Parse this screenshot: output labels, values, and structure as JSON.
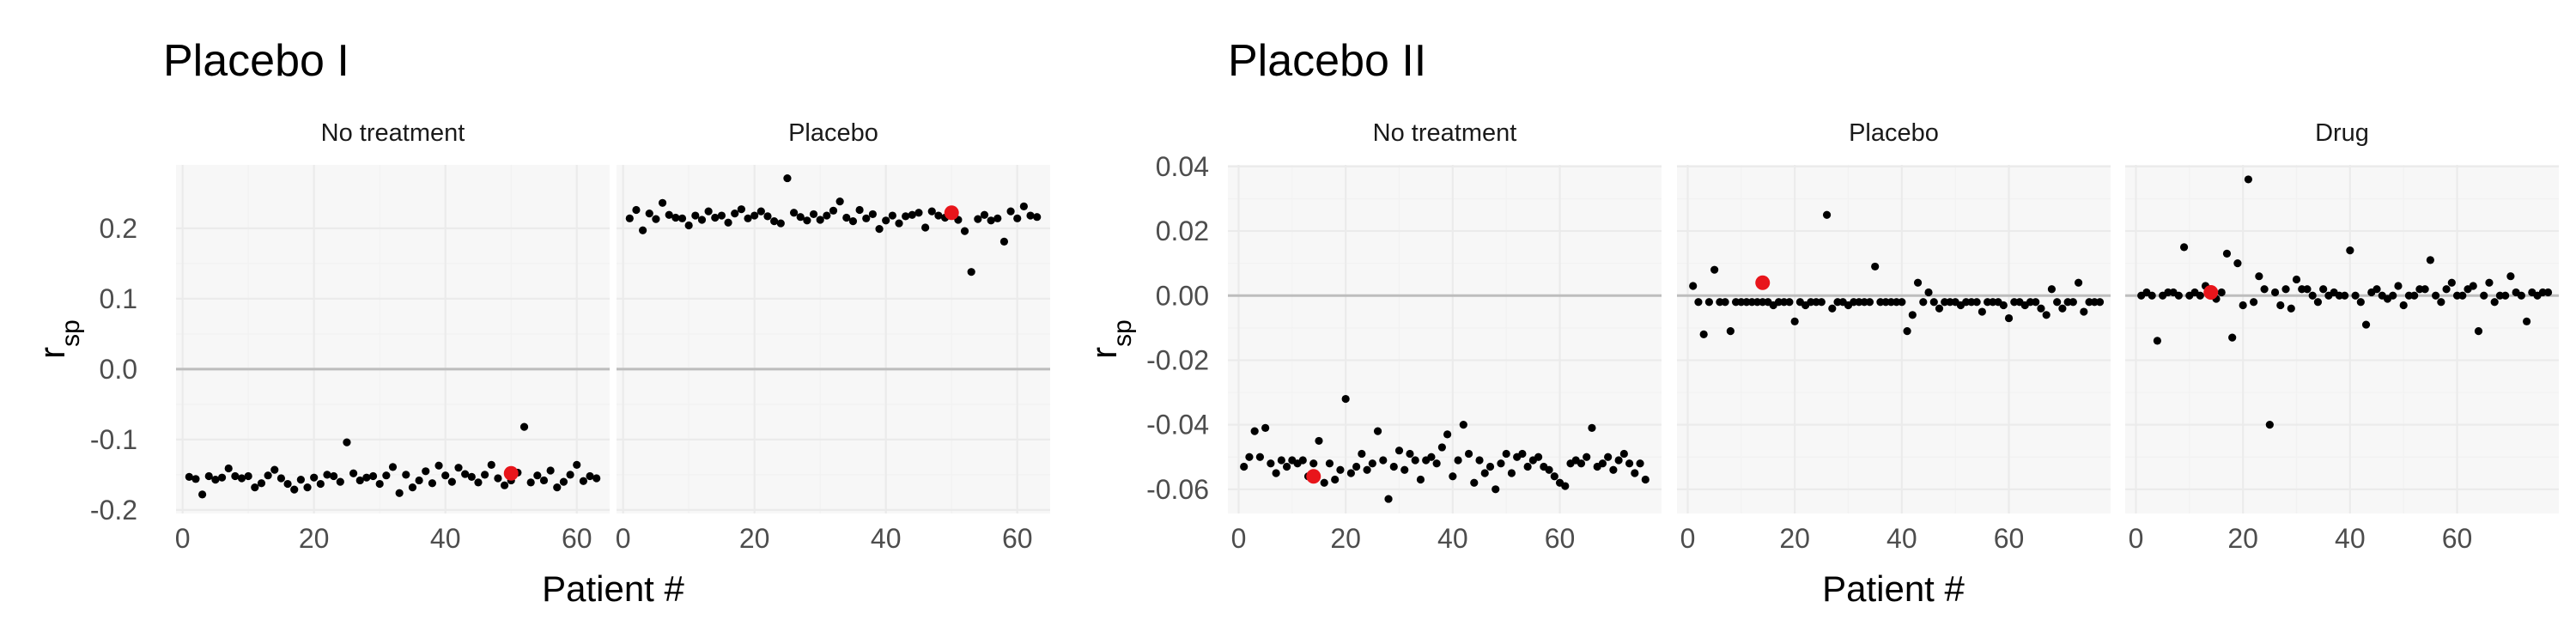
{
  "chart_data": [
    {
      "type": "scatter",
      "title": "Placebo I",
      "xlabel": "Patient #",
      "ylabel_base": "r",
      "ylabel_sub": "sp",
      "xlim": [
        -1,
        65
      ],
      "ylim": [
        -0.205,
        0.29
      ],
      "xticks": [
        0,
        20,
        40,
        60
      ],
      "yticks": [
        -0.2,
        -0.1,
        0.0,
        0.1,
        0.2
      ],
      "ytick_labels": [
        "-0.2",
        "-0.1",
        "0.0",
        "0.1",
        "0.2"
      ],
      "reference_line": 0,
      "panels": [
        {
          "strip": "No treatment",
          "x_start": 1,
          "y": [
            -0.153,
            -0.156,
            -0.178,
            -0.152,
            -0.157,
            -0.154,
            -0.141,
            -0.152,
            -0.155,
            -0.152,
            -0.168,
            -0.162,
            -0.151,
            -0.143,
            -0.155,
            -0.163,
            -0.171,
            -0.157,
            -0.168,
            -0.154,
            -0.163,
            -0.15,
            -0.152,
            -0.16,
            -0.104,
            -0.148,
            -0.158,
            -0.154,
            -0.152,
            -0.163,
            -0.151,
            -0.139,
            -0.176,
            -0.15,
            -0.168,
            -0.158,
            -0.145,
            -0.162,
            -0.137,
            -0.151,
            -0.16,
            -0.14,
            -0.149,
            -0.153,
            -0.161,
            -0.15,
            -0.136,
            -0.155,
            -0.165,
            -0.158,
            -0.147,
            -0.082,
            -0.161,
            -0.151,
            -0.158,
            -0.144,
            -0.168,
            -0.16,
            -0.15,
            -0.136,
            -0.159,
            -0.152,
            -0.155
          ],
          "highlight": {
            "x": 50,
            "y": -0.148
          }
        },
        {
          "strip": "Placebo",
          "x_start": 1,
          "y": [
            0.214,
            0.226,
            0.197,
            0.221,
            0.213,
            0.236,
            0.219,
            0.215,
            0.214,
            0.204,
            0.218,
            0.212,
            0.224,
            0.215,
            0.218,
            0.208,
            0.221,
            0.227,
            0.214,
            0.218,
            0.224,
            0.217,
            0.21,
            0.207,
            0.271,
            0.222,
            0.216,
            0.211,
            0.22,
            0.212,
            0.218,
            0.225,
            0.238,
            0.215,
            0.21,
            0.226,
            0.214,
            0.22,
            0.199,
            0.211,
            0.218,
            0.207,
            0.217,
            0.219,
            0.222,
            0.201,
            0.224,
            0.218,
            0.215,
            0.221,
            0.212,
            0.196,
            0.138,
            0.213,
            0.219,
            0.211,
            0.214,
            0.181,
            0.224,
            0.214,
            0.231,
            0.218,
            0.216
          ],
          "highlight": {
            "x": 50,
            "y": 0.222
          }
        }
      ]
    },
    {
      "type": "scatter",
      "title": "Placebo II",
      "xlabel": "Patient #",
      "ylabel_base": "r",
      "ylabel_sub": "sp",
      "xlim": [
        -2,
        79
      ],
      "ylim": [
        -0.0675,
        0.0405
      ],
      "xticks": [
        0,
        20,
        40,
        60
      ],
      "yticks": [
        -0.06,
        -0.04,
        -0.02,
        0.0,
        0.02,
        0.04
      ],
      "ytick_labels": [
        "-0.06",
        "-0.04",
        "-0.02",
        "0.00",
        "0.02",
        "0.04"
      ],
      "reference_line": 0,
      "panels": [
        {
          "strip": "No treatment",
          "x_start": 1,
          "y": [
            -0.053,
            -0.05,
            -0.042,
            -0.05,
            -0.041,
            -0.052,
            -0.055,
            -0.051,
            -0.053,
            -0.051,
            -0.052,
            -0.051,
            -0.056,
            -0.052,
            -0.045,
            -0.058,
            -0.052,
            -0.057,
            -0.054,
            -0.032,
            -0.055,
            -0.053,
            -0.049,
            -0.054,
            -0.052,
            -0.042,
            -0.051,
            -0.063,
            -0.053,
            -0.048,
            -0.054,
            -0.049,
            -0.051,
            -0.057,
            -0.051,
            -0.05,
            -0.052,
            -0.047,
            -0.043,
            -0.056,
            -0.051,
            -0.04,
            -0.049,
            -0.058,
            -0.051,
            -0.055,
            -0.053,
            -0.06,
            -0.052,
            -0.049,
            -0.055,
            -0.05,
            -0.049,
            -0.053,
            -0.051,
            -0.05,
            -0.053,
            -0.054,
            -0.056,
            -0.058,
            -0.059,
            -0.052,
            -0.051,
            -0.052,
            -0.05,
            -0.041,
            -0.053,
            -0.052,
            -0.05,
            -0.054,
            -0.051,
            -0.049,
            -0.052,
            -0.055,
            -0.052,
            -0.057
          ],
          "highlight": {
            "x": 14,
            "y": -0.056
          }
        },
        {
          "strip": "Placebo",
          "x_start": 1,
          "y": [
            0.003,
            -0.002,
            -0.012,
            -0.002,
            0.008,
            -0.002,
            -0.002,
            -0.011,
            -0.002,
            -0.002,
            -0.002,
            -0.002,
            -0.002,
            -0.002,
            -0.002,
            -0.003,
            -0.002,
            -0.002,
            -0.002,
            -0.008,
            -0.002,
            -0.003,
            -0.002,
            -0.002,
            -0.002,
            0.025,
            -0.004,
            -0.002,
            -0.002,
            -0.003,
            -0.002,
            -0.002,
            -0.002,
            -0.002,
            0.009,
            -0.002,
            -0.002,
            -0.002,
            -0.002,
            -0.002,
            -0.011,
            -0.006,
            0.004,
            -0.002,
            0.001,
            -0.002,
            -0.004,
            -0.002,
            -0.002,
            -0.002,
            -0.003,
            -0.002,
            -0.002,
            -0.002,
            -0.005,
            -0.002,
            -0.002,
            -0.002,
            -0.003,
            -0.007,
            -0.002,
            -0.002,
            -0.003,
            -0.002,
            -0.002,
            -0.004,
            -0.006,
            0.002,
            -0.002,
            -0.004,
            -0.002,
            -0.002,
            0.004,
            -0.005,
            -0.002,
            -0.002,
            -0.002
          ],
          "highlight": {
            "x": 14,
            "y": 0.004
          }
        },
        {
          "strip": "Drug",
          "x_start": 1,
          "y": [
            0.0,
            0.001,
            0.0,
            -0.014,
            0.0,
            0.001,
            0.001,
            0.0,
            0.015,
            0.0,
            0.001,
            0.0,
            0.003,
            0.0,
            -0.001,
            0.001,
            0.013,
            -0.013,
            0.01,
            -0.003,
            0.036,
            -0.002,
            0.006,
            0.002,
            -0.04,
            0.001,
            -0.003,
            0.002,
            -0.004,
            0.005,
            0.002,
            0.002,
            0.0,
            -0.002,
            0.002,
            0.0,
            0.001,
            0.0,
            0.0,
            0.014,
            0.0,
            -0.002,
            -0.009,
            0.001,
            0.002,
            0.0,
            -0.001,
            0.0,
            0.003,
            -0.003,
            0.0,
            0.0,
            0.002,
            0.002,
            0.011,
            0.0,
            -0.002,
            0.002,
            0.004,
            0.0,
            0.0,
            0.002,
            0.003,
            -0.011,
            0.0,
            0.004,
            -0.002,
            0.0,
            0.0,
            0.006,
            0.001,
            0.0,
            -0.008,
            0.001,
            0.0,
            0.001,
            0.001
          ],
          "highlight": {
            "x": 14,
            "y": 0.001
          }
        }
      ]
    }
  ]
}
